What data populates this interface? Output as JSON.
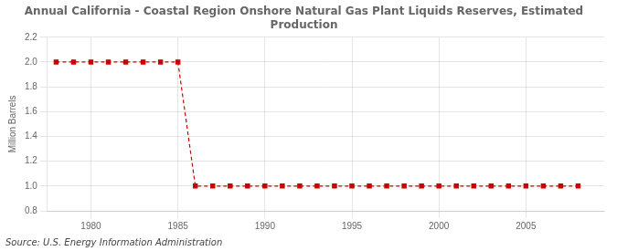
{
  "chart_data": {
    "type": "line",
    "title": "Annual California - Coastal Region Onshore Natural Gas Plant Liquids Reserves, Estimated\nProduction",
    "y_label": "Million Barrels",
    "annotations": [
      "Source: U.S. Energy Information Administration"
    ],
    "x": [
      1978,
      1979,
      1980,
      1981,
      1982,
      1983,
      1984,
      1985,
      1986,
      1987,
      1988,
      1989,
      1990,
      1991,
      1992,
      1993,
      1994,
      1995,
      1996,
      1997,
      1998,
      1999,
      2000,
      2001,
      2002,
      2003,
      2004,
      2005,
      2006,
      2007,
      2008
    ],
    "values": [
      2.0,
      2.0,
      2.0,
      2.0,
      2.0,
      2.0,
      2.0,
      2.0,
      1.0,
      1.0,
      1.0,
      1.0,
      1.0,
      1.0,
      1.0,
      1.0,
      1.0,
      1.0,
      1.0,
      1.0,
      1.0,
      1.0,
      1.0,
      1.0,
      1.0,
      1.0,
      1.0,
      1.0,
      1.0,
      1.0,
      1.0
    ],
    "color": "#cc0000",
    "line_style": "dashed",
    "marker": "square",
    "xlim": [
      1977.5,
      2009.5
    ],
    "xticks": [
      1980,
      1985,
      1990,
      1995,
      2000,
      2005
    ],
    "ylim": [
      0.8,
      2.2
    ],
    "yticks": [
      0.8,
      {
        "value": 1.0,
        "label": "1.0"
      },
      1.2,
      1.4,
      1.6,
      1.8,
      {
        "value": 2.0,
        "label": "2.0"
      },
      2.2
    ],
    "grid": true,
    "legend": false
  }
}
